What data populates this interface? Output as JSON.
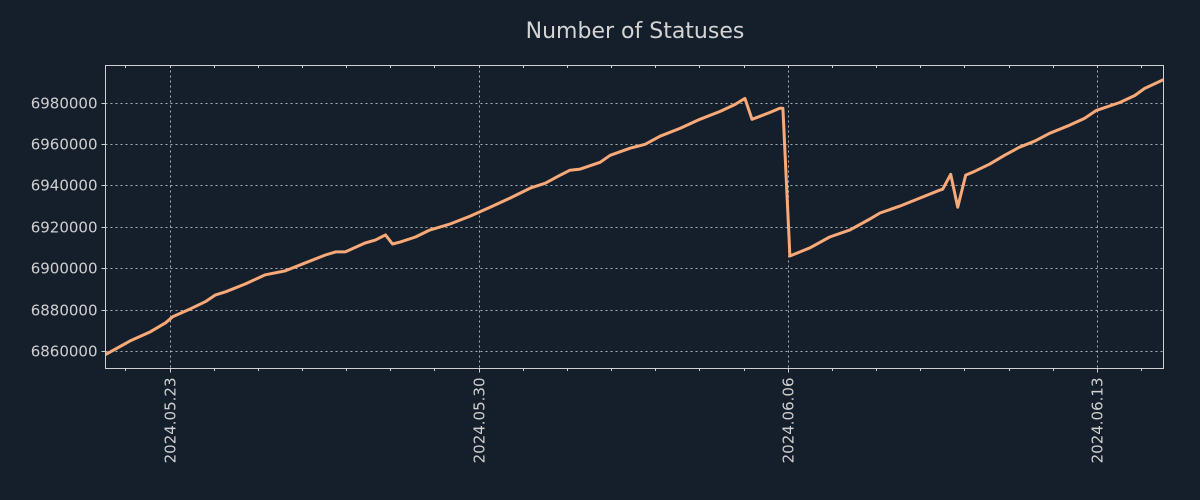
{
  "chart_data": {
    "type": "line",
    "title": "Number of Statuses",
    "xlabel": "",
    "ylabel": "",
    "x_unit": "days since 2024-05-23",
    "xlim": [
      -1.45,
      22.51
    ],
    "ylim": [
      6851500,
      6998000
    ],
    "grid": true,
    "x_ticks": [
      {
        "value": 0,
        "label": "2024.05.23"
      },
      {
        "value": 7,
        "label": "2024.05.30"
      },
      {
        "value": 14,
        "label": "2024.06.06"
      },
      {
        "value": 21,
        "label": "2024.06.13"
      }
    ],
    "x_minor_tick_step": 1,
    "y_ticks": [
      {
        "value": 6860000,
        "label": "6860000"
      },
      {
        "value": 6880000,
        "label": "6880000"
      },
      {
        "value": 6900000,
        "label": "6900000"
      },
      {
        "value": 6920000,
        "label": "6920000"
      },
      {
        "value": 6940000,
        "label": "6940000"
      },
      {
        "value": 6960000,
        "label": "6960000"
      },
      {
        "value": 6980000,
        "label": "6980000"
      }
    ],
    "series": [
      {
        "name": "Number of Statuses",
        "color": "#f9a877",
        "x": [
          -1.45,
          -0.88,
          -0.43,
          -0.09,
          0.07,
          0.48,
          0.81,
          1.04,
          1.27,
          1.72,
          2.17,
          2.62,
          3.08,
          3.53,
          3.76,
          3.98,
          4.43,
          4.66,
          4.89,
          5.05,
          5.23,
          5.57,
          5.9,
          6.36,
          6.81,
          7.26,
          7.71,
          8.17,
          8.51,
          8.85,
          9.07,
          9.3,
          9.75,
          9.98,
          10.43,
          10.77,
          11.11,
          11.56,
          12.01,
          12.47,
          12.81,
          13.03,
          13.19,
          13.6,
          13.82,
          13.89,
          14.05,
          14.5,
          14.95,
          15.41,
          15.86,
          16.09,
          16.54,
          16.99,
          17.44,
          17.51,
          17.69,
          17.85,
          18.03,
          18.24,
          18.57,
          18.91,
          19.25,
          19.59,
          19.93,
          20.38,
          20.72,
          20.99,
          21.52,
          21.86,
          22.08,
          22.51
        ],
        "y": [
          6858200,
          6865000,
          6869300,
          6873600,
          6876500,
          6880400,
          6883800,
          6887100,
          6888600,
          6892400,
          6896800,
          6898700,
          6902600,
          6906400,
          6907900,
          6907900,
          6912200,
          6913600,
          6916100,
          6911700,
          6912700,
          6915100,
          6918500,
          6921400,
          6925200,
          6929500,
          6933900,
          6938700,
          6941100,
          6945000,
          6947400,
          6947900,
          6951200,
          6954600,
          6958000,
          6959900,
          6963800,
          6967600,
          6972000,
          6975800,
          6979200,
          6982100,
          6972000,
          6975300,
          6977300,
          6977300,
          6905900,
          6909800,
          6915100,
          6918500,
          6923800,
          6926700,
          6930000,
          6933900,
          6937700,
          6938200,
          6945400,
          6929500,
          6945000,
          6946900,
          6950300,
          6954600,
          6958500,
          6961400,
          6965200,
          6969100,
          6972400,
          6976300,
          6980100,
          6983500,
          6986900,
          6991200
        ]
      }
    ],
    "colors": {
      "background": "#151f2b",
      "grid": "#c8c8c8",
      "axes": "#d0d0d0",
      "text": "#d0d0d0"
    }
  }
}
